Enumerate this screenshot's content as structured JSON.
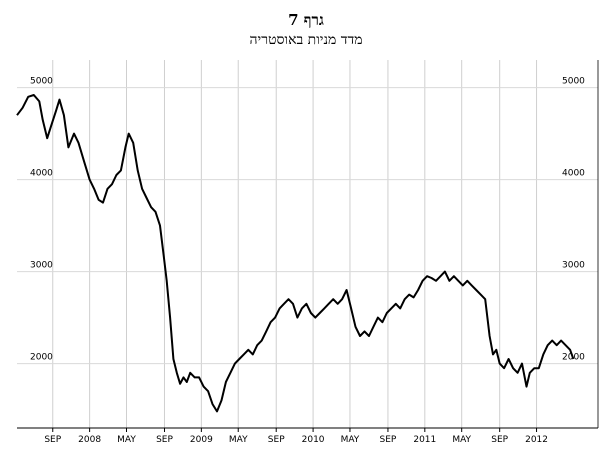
{
  "title": "גרף 7",
  "subtitle": "מדד מניות באוסטריה",
  "chart_data": {
    "type": "line",
    "title": "גרף 7",
    "subtitle": "מדד מניות באוסטריה",
    "xlabel": "",
    "ylabel": "",
    "grid": true,
    "ylim": [
      1300,
      5300
    ],
    "xlim": [
      2007.35,
      2012.55
    ],
    "y_ticks_left": [
      "5000",
      "4000",
      "3000",
      "2000"
    ],
    "y_ticks_right": [
      "5000",
      "4000",
      "3000",
      "2000"
    ],
    "x_tick_labels": [
      "SEP",
      "2008",
      "MAY",
      "SEP",
      "2009",
      "MAY",
      "SEP",
      "2010",
      "MAY",
      "SEP",
      "2011",
      "MAY",
      "SEP",
      "2012"
    ],
    "x_tick_values": [
      2007.67,
      2008.0,
      2008.33,
      2008.67,
      2009.0,
      2009.33,
      2009.67,
      2010.0,
      2010.33,
      2010.67,
      2011.0,
      2011.33,
      2011.67,
      2012.0
    ],
    "series": [
      {
        "values": [
          [
            2007.35,
            4700
          ],
          [
            2007.4,
            4780
          ],
          [
            2007.45,
            4900
          ],
          [
            2007.5,
            4920
          ],
          [
            2007.55,
            4850
          ],
          [
            2007.58,
            4650
          ],
          [
            2007.62,
            4450
          ],
          [
            2007.66,
            4600
          ],
          [
            2007.7,
            4750
          ],
          [
            2007.73,
            4870
          ],
          [
            2007.77,
            4700
          ],
          [
            2007.81,
            4350
          ],
          [
            2007.86,
            4500
          ],
          [
            2007.9,
            4400
          ],
          [
            2007.95,
            4200
          ],
          [
            2008.0,
            4000
          ],
          [
            2008.04,
            3900
          ],
          [
            2008.08,
            3780
          ],
          [
            2008.12,
            3750
          ],
          [
            2008.16,
            3900
          ],
          [
            2008.2,
            3950
          ],
          [
            2008.24,
            4050
          ],
          [
            2008.28,
            4100
          ],
          [
            2008.32,
            4350
          ],
          [
            2008.35,
            4500
          ],
          [
            2008.39,
            4400
          ],
          [
            2008.43,
            4100
          ],
          [
            2008.47,
            3900
          ],
          [
            2008.51,
            3800
          ],
          [
            2008.55,
            3700
          ],
          [
            2008.59,
            3650
          ],
          [
            2008.63,
            3500
          ],
          [
            2008.66,
            3200
          ],
          [
            2008.69,
            2900
          ],
          [
            2008.72,
            2500
          ],
          [
            2008.75,
            2050
          ],
          [
            2008.78,
            1900
          ],
          [
            2008.81,
            1780
          ],
          [
            2008.84,
            1850
          ],
          [
            2008.87,
            1800
          ],
          [
            2008.9,
            1900
          ],
          [
            2008.94,
            1850
          ],
          [
            2008.98,
            1850
          ],
          [
            2009.02,
            1750
          ],
          [
            2009.06,
            1700
          ],
          [
            2009.1,
            1560
          ],
          [
            2009.14,
            1480
          ],
          [
            2009.18,
            1600
          ],
          [
            2009.22,
            1800
          ],
          [
            2009.26,
            1900
          ],
          [
            2009.3,
            2000
          ],
          [
            2009.34,
            2050
          ],
          [
            2009.38,
            2100
          ],
          [
            2009.42,
            2150
          ],
          [
            2009.46,
            2100
          ],
          [
            2009.5,
            2200
          ],
          [
            2009.54,
            2250
          ],
          [
            2009.58,
            2350
          ],
          [
            2009.62,
            2450
          ],
          [
            2009.66,
            2500
          ],
          [
            2009.7,
            2600
          ],
          [
            2009.74,
            2650
          ],
          [
            2009.78,
            2700
          ],
          [
            2009.82,
            2650
          ],
          [
            2009.86,
            2500
          ],
          [
            2009.9,
            2600
          ],
          [
            2009.94,
            2650
          ],
          [
            2009.98,
            2550
          ],
          [
            2010.02,
            2500
          ],
          [
            2010.06,
            2550
          ],
          [
            2010.1,
            2600
          ],
          [
            2010.14,
            2650
          ],
          [
            2010.18,
            2700
          ],
          [
            2010.22,
            2650
          ],
          [
            2010.26,
            2700
          ],
          [
            2010.3,
            2800
          ],
          [
            2010.34,
            2600
          ],
          [
            2010.38,
            2400
          ],
          [
            2010.42,
            2300
          ],
          [
            2010.46,
            2350
          ],
          [
            2010.5,
            2300
          ],
          [
            2010.54,
            2400
          ],
          [
            2010.58,
            2500
          ],
          [
            2010.62,
            2450
          ],
          [
            2010.66,
            2550
          ],
          [
            2010.7,
            2600
          ],
          [
            2010.74,
            2650
          ],
          [
            2010.78,
            2600
          ],
          [
            2010.82,
            2700
          ],
          [
            2010.86,
            2750
          ],
          [
            2010.9,
            2720
          ],
          [
            2010.94,
            2800
          ],
          [
            2010.98,
            2900
          ],
          [
            2011.02,
            2950
          ],
          [
            2011.06,
            2930
          ],
          [
            2011.1,
            2900
          ],
          [
            2011.14,
            2950
          ],
          [
            2011.18,
            3000
          ],
          [
            2011.22,
            2900
          ],
          [
            2011.26,
            2950
          ],
          [
            2011.3,
            2900
          ],
          [
            2011.34,
            2850
          ],
          [
            2011.38,
            2900
          ],
          [
            2011.42,
            2850
          ],
          [
            2011.46,
            2800
          ],
          [
            2011.5,
            2750
          ],
          [
            2011.54,
            2700
          ],
          [
            2011.56,
            2500
          ],
          [
            2011.58,
            2300
          ],
          [
            2011.61,
            2100
          ],
          [
            2011.64,
            2150
          ],
          [
            2011.67,
            2000
          ],
          [
            2011.71,
            1950
          ],
          [
            2011.75,
            2050
          ],
          [
            2011.79,
            1950
          ],
          [
            2011.83,
            1900
          ],
          [
            2011.87,
            2000
          ],
          [
            2011.91,
            1750
          ],
          [
            2011.94,
            1900
          ],
          [
            2011.98,
            1950
          ],
          [
            2012.02,
            1950
          ],
          [
            2012.06,
            2100
          ],
          [
            2012.1,
            2200
          ],
          [
            2012.14,
            2250
          ],
          [
            2012.18,
            2200
          ],
          [
            2012.22,
            2250
          ],
          [
            2012.26,
            2200
          ],
          [
            2012.3,
            2150
          ],
          [
            2012.33,
            2050
          ]
        ]
      }
    ]
  }
}
